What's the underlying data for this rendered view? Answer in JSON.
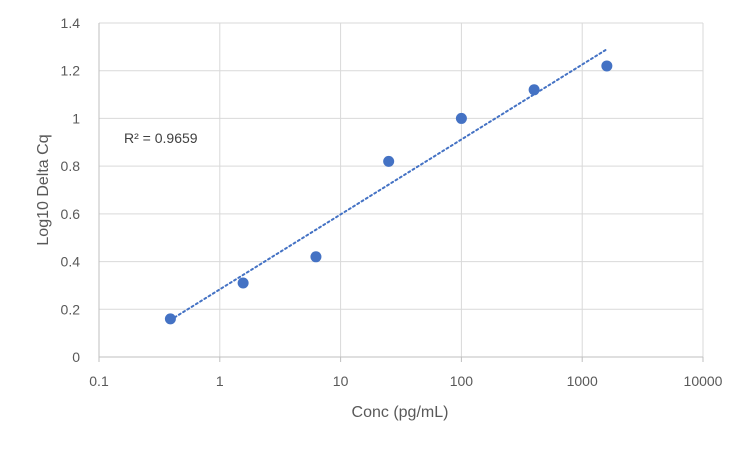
{
  "chart_data": {
    "type": "scatter",
    "title": "",
    "xlabel": "Conc (pg/mL)",
    "ylabel": "Log10 Delta Cq",
    "x_scale": "log",
    "xlim": [
      0.1,
      10000
    ],
    "ylim": [
      0,
      1.4
    ],
    "x_ticks": [
      "0.1",
      "1",
      "10",
      "100",
      "1000",
      "10000"
    ],
    "y_ticks": [
      "0",
      "0.2",
      "0.4",
      "0.6",
      "0.8",
      "1",
      "1.2",
      "1.4"
    ],
    "grid": true,
    "legend": "none",
    "series": [
      {
        "color": "#4472C4",
        "points": [
          {
            "x": 0.39,
            "y": 0.16
          },
          {
            "x": 1.56,
            "y": 0.31
          },
          {
            "x": 6.25,
            "y": 0.42
          },
          {
            "x": 25,
            "y": 0.82
          },
          {
            "x": 100,
            "y": 1.0
          },
          {
            "x": 400,
            "y": 1.12
          },
          {
            "x": 1600,
            "y": 1.22
          }
        ]
      }
    ],
    "trendline": {
      "type": "logarithmic",
      "style": "dotted",
      "color": "#4472C4",
      "from": {
        "x": 0.39,
        "y": 0.155
      },
      "to": {
        "x": 1600,
        "y": 1.29
      }
    },
    "annotations": [
      {
        "text": "R² = 0.9659"
      }
    ]
  }
}
